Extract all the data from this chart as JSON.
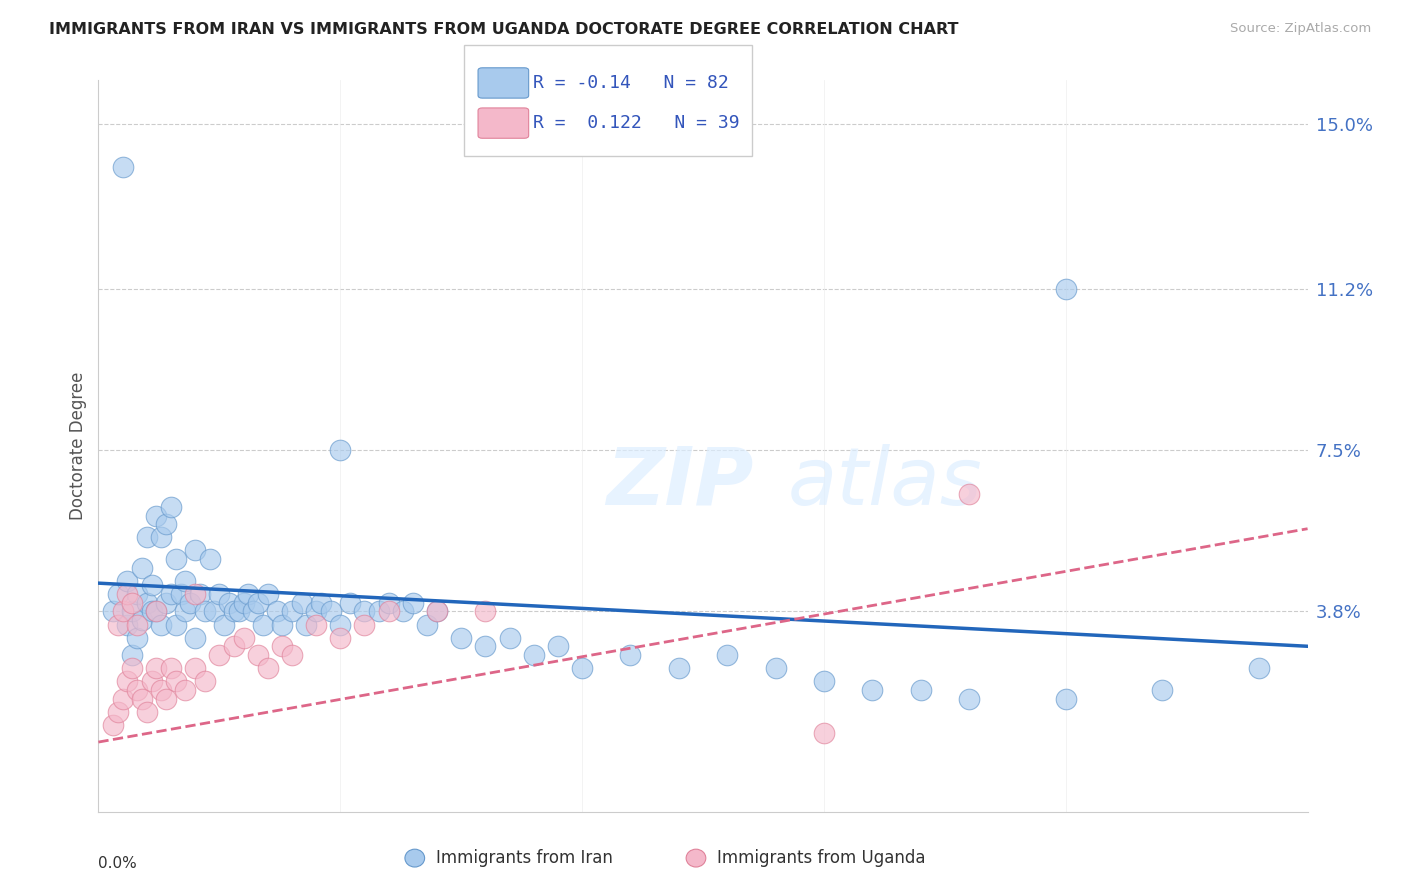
{
  "title": "IMMIGRANTS FROM IRAN VS IMMIGRANTS FROM UGANDA DOCTORATE DEGREE CORRELATION CHART",
  "source": "Source: ZipAtlas.com",
  "ylabel": "Doctorate Degree",
  "ytick_labels": [
    "3.8%",
    "7.5%",
    "11.2%",
    "15.0%"
  ],
  "ytick_values": [
    0.038,
    0.075,
    0.112,
    0.15
  ],
  "xmin": 0.0,
  "xmax": 0.25,
  "ymin": -0.008,
  "ymax": 0.16,
  "iran_color": "#a8caed",
  "iran_color_edge": "#6699cc",
  "uganda_color": "#f4b8ca",
  "uganda_color_edge": "#e0829a",
  "iran_R": -0.14,
  "iran_N": 82,
  "uganda_R": 0.122,
  "uganda_N": 39,
  "legend_label_iran": "Immigrants from Iran",
  "legend_label_uganda": "Immigrants from Uganda",
  "watermark_zip": "ZIP",
  "watermark_atlas": "atlas",
  "iran_trend_x0": 0.0,
  "iran_trend_y0": 0.0445,
  "iran_trend_x1": 0.25,
  "iran_trend_y1": 0.03,
  "uganda_trend_x0": 0.0,
  "uganda_trend_y0": 0.008,
  "uganda_trend_x1": 0.25,
  "uganda_trend_y1": 0.057,
  "iran_scatter_x": [
    0.003,
    0.004,
    0.005,
    0.006,
    0.006,
    0.007,
    0.007,
    0.008,
    0.008,
    0.009,
    0.009,
    0.01,
    0.01,
    0.011,
    0.011,
    0.012,
    0.012,
    0.013,
    0.013,
    0.014,
    0.014,
    0.015,
    0.015,
    0.016,
    0.016,
    0.017,
    0.018,
    0.018,
    0.019,
    0.02,
    0.02,
    0.021,
    0.022,
    0.023,
    0.024,
    0.025,
    0.026,
    0.027,
    0.028,
    0.029,
    0.03,
    0.031,
    0.032,
    0.033,
    0.034,
    0.035,
    0.037,
    0.038,
    0.04,
    0.042,
    0.043,
    0.045,
    0.046,
    0.048,
    0.05,
    0.052,
    0.055,
    0.058,
    0.06,
    0.063,
    0.065,
    0.068,
    0.07,
    0.075,
    0.08,
    0.085,
    0.09,
    0.095,
    0.1,
    0.11,
    0.12,
    0.13,
    0.14,
    0.15,
    0.16,
    0.17,
    0.18,
    0.2,
    0.22,
    0.24,
    0.05,
    0.2
  ],
  "iran_scatter_y": [
    0.038,
    0.042,
    0.14,
    0.035,
    0.045,
    0.038,
    0.028,
    0.042,
    0.032,
    0.036,
    0.048,
    0.04,
    0.055,
    0.038,
    0.044,
    0.06,
    0.038,
    0.055,
    0.035,
    0.058,
    0.04,
    0.062,
    0.042,
    0.05,
    0.035,
    0.042,
    0.045,
    0.038,
    0.04,
    0.052,
    0.032,
    0.042,
    0.038,
    0.05,
    0.038,
    0.042,
    0.035,
    0.04,
    0.038,
    0.038,
    0.04,
    0.042,
    0.038,
    0.04,
    0.035,
    0.042,
    0.038,
    0.035,
    0.038,
    0.04,
    0.035,
    0.038,
    0.04,
    0.038,
    0.035,
    0.04,
    0.038,
    0.038,
    0.04,
    0.038,
    0.04,
    0.035,
    0.038,
    0.032,
    0.03,
    0.032,
    0.028,
    0.03,
    0.025,
    0.028,
    0.025,
    0.028,
    0.025,
    0.022,
    0.02,
    0.02,
    0.018,
    0.018,
    0.02,
    0.025,
    0.075,
    0.112
  ],
  "uganda_scatter_x": [
    0.003,
    0.004,
    0.005,
    0.006,
    0.007,
    0.008,
    0.009,
    0.01,
    0.011,
    0.012,
    0.013,
    0.014,
    0.015,
    0.016,
    0.018,
    0.02,
    0.022,
    0.025,
    0.028,
    0.03,
    0.033,
    0.035,
    0.038,
    0.04,
    0.045,
    0.05,
    0.055,
    0.06,
    0.07,
    0.08,
    0.004,
    0.005,
    0.006,
    0.007,
    0.008,
    0.012,
    0.02,
    0.15,
    0.18
  ],
  "uganda_scatter_y": [
    0.012,
    0.015,
    0.018,
    0.022,
    0.025,
    0.02,
    0.018,
    0.015,
    0.022,
    0.025,
    0.02,
    0.018,
    0.025,
    0.022,
    0.02,
    0.025,
    0.022,
    0.028,
    0.03,
    0.032,
    0.028,
    0.025,
    0.03,
    0.028,
    0.035,
    0.032,
    0.035,
    0.038,
    0.038,
    0.038,
    0.035,
    0.038,
    0.042,
    0.04,
    0.035,
    0.038,
    0.042,
    0.01,
    0.065
  ]
}
